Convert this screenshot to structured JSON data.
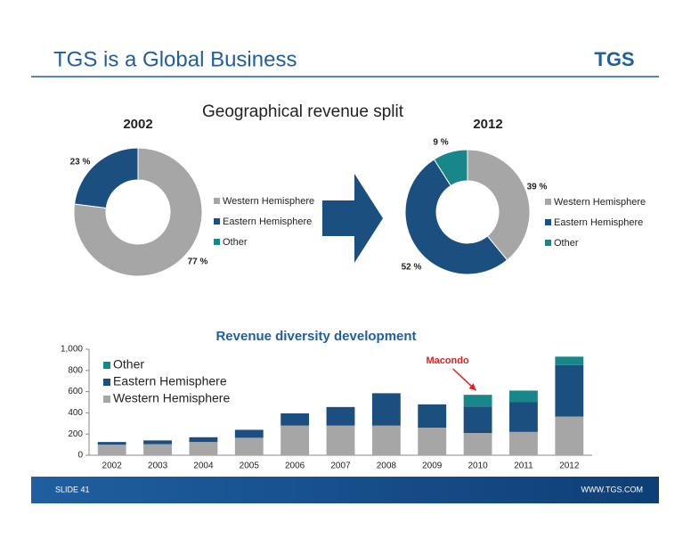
{
  "header": {
    "title": "TGS is a Global Business",
    "logo": "TGS"
  },
  "section_title": "Geographical revenue split",
  "footer": {
    "slide": "SLIDE 41",
    "url": "WWW.TGS.COM"
  },
  "chart_data": [
    {
      "type": "donut",
      "title": "2002",
      "categories": [
        "Western Hemisphere",
        "Eastern Hemisphere",
        "Other"
      ],
      "values": [
        77,
        23,
        0
      ],
      "value_labels": [
        "77 %",
        "23 %",
        null
      ],
      "colors": [
        "#a6a6a6",
        "#1b4f80",
        "#17878a"
      ]
    },
    {
      "type": "donut",
      "title": "2012",
      "categories": [
        "Western Hemisphere",
        "Eastern Hemisphere",
        "Other"
      ],
      "values": [
        39,
        52,
        9
      ],
      "value_labels": [
        "39 %",
        "52 %",
        "9 %"
      ],
      "colors": [
        "#a6a6a6",
        "#1b4f80",
        "#17878a"
      ]
    },
    {
      "type": "stacked_bar",
      "title": "Revenue diversity development",
      "categories": [
        "2002",
        "2003",
        "2004",
        "2005",
        "2006",
        "2007",
        "2008",
        "2009",
        "2010",
        "2011",
        "2012"
      ],
      "series": [
        {
          "name": "Western Hemisphere",
          "color": "#a6a6a6",
          "values": [
            100,
            105,
            125,
            165,
            280,
            280,
            280,
            260,
            210,
            220,
            365
          ]
        },
        {
          "name": "Eastern Hemisphere",
          "color": "#1b4f80",
          "values": [
            25,
            35,
            45,
            75,
            115,
            175,
            305,
            220,
            250,
            280,
            485
          ]
        },
        {
          "name": "Other",
          "color": "#17878a",
          "values": [
            0,
            0,
            0,
            0,
            0,
            0,
            0,
            0,
            110,
            110,
            80
          ]
        }
      ],
      "ylim": [
        0,
        1000
      ],
      "yticks": [
        0,
        200,
        400,
        600,
        800,
        {
          "value": 1000,
          "label": "1,000"
        }
      ],
      "legend": "top-left",
      "annotation": {
        "text": "Macondo",
        "category": "2010",
        "color": "#e02020"
      }
    }
  ]
}
